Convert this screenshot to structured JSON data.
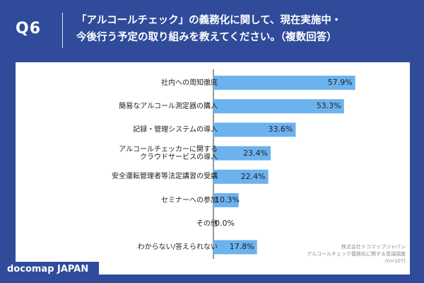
{
  "header": {
    "question_number": "Q6",
    "title_line1": "「アルコールチェック」の義務化に関して、現在実施中・",
    "title_line2": "今後行う予定の取り組みを教えてください。（複数回答）"
  },
  "footer": {
    "brand": "docomap JAPAN",
    "source_line1": "株式会社ドコマップジャパン",
    "source_line2": "アルコールチェック義務化に関する意識調査",
    "source_line3": "(n=107)"
  },
  "colors": {
    "header_bg": "#2f4b9a",
    "bar_fill": "#6cb2ee",
    "axis": "#333333"
  },
  "chart_data": {
    "type": "bar",
    "orientation": "horizontal",
    "xlim": [
      0,
      60
    ],
    "categories": [
      {
        "line1": "社内への周知徹底",
        "line2": ""
      },
      {
        "line1": "簡易なアルコール測定器の購入",
        "line2": ""
      },
      {
        "line1": "記録・管理システムの導入",
        "line2": ""
      },
      {
        "line1": "アルコールチェッカーに関する",
        "line2": "クラウドサービスの導入"
      },
      {
        "line1": "安全運転管理者等法定講習の受講",
        "line2": ""
      },
      {
        "line1": "セミナーへの参加",
        "line2": ""
      },
      {
        "line1": "その他",
        "line2": ""
      },
      {
        "line1": "わからない/答えられない",
        "line2": ""
      }
    ],
    "values": [
      57.9,
      53.3,
      33.6,
      23.4,
      22.4,
      10.3,
      0.0,
      17.8
    ],
    "value_labels": [
      "57.9%",
      "53.3%",
      "33.6%",
      "23.4%",
      "22.4%",
      "10.3%",
      "0.0%",
      "17.8%"
    ],
    "unit": "%"
  }
}
